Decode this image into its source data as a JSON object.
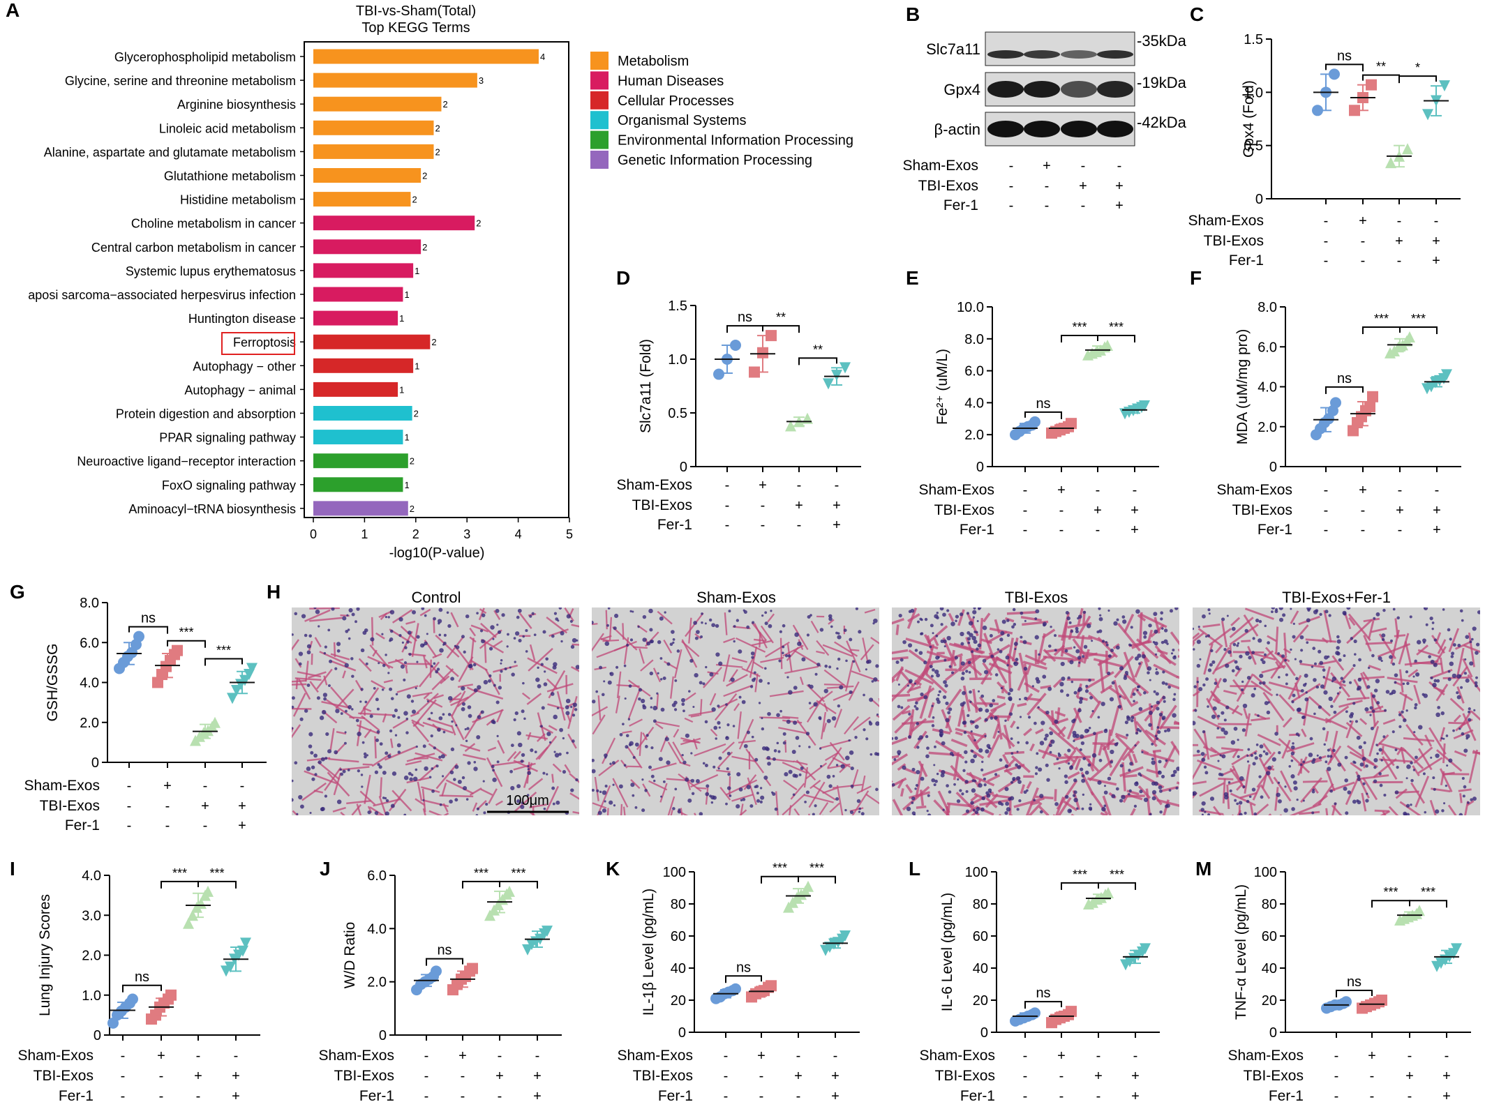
{
  "colors": {
    "Metabolism": "#f7931e",
    "Human Diseases": "#d81b60",
    "Cellular Processes": "#d62728",
    "Organismal Systems": "#1fc0cf",
    "Environmental Information Processing": "#2ca02c",
    "Genetic Information Processing": "#9467bd",
    "groups": [
      "#6a9bd8",
      "#e07b80",
      "#b8e0b0",
      "#5cc0c0"
    ],
    "he_tissue": "#c04878",
    "he_background": "#d2d2d2"
  },
  "panel_letters": [
    "A",
    "B",
    "C",
    "D",
    "E",
    "F",
    "G",
    "H",
    "I",
    "J",
    "K",
    "L",
    "M"
  ],
  "treatment_rows": [
    {
      "label": "Sham-Exos",
      "signs": [
        "-",
        "+",
        "-",
        "-"
      ]
    },
    {
      "label": "TBI-Exos",
      "signs": [
        "-",
        "-",
        "+",
        "+"
      ]
    },
    {
      "label": "Fer-1",
      "signs": [
        "-",
        "-",
        "-",
        "+"
      ]
    }
  ],
  "chart_data": [
    {
      "panel": "A",
      "type": "bar",
      "title": "TBI-vs-Sham(Total)",
      "subtitle": "Top KEGG Terms",
      "xlabel": "-log10(P-value)",
      "xlim": [
        0,
        5
      ],
      "xticks": [
        "0",
        "1",
        "2",
        "3",
        "4",
        "5"
      ],
      "highlighted": "Ferroptosis",
      "legend_position": "right",
      "legend": [
        "Metabolism",
        "Human Diseases",
        "Cellular Processes",
        "Organismal Systems",
        "Environmental Information Processing",
        "Genetic Information Processing"
      ],
      "categories": [
        "Glycerophospholipid metabolism",
        "Glycine, serine and threonine metabolism",
        "Arginine biosynthesis",
        "Linoleic acid metabolism",
        "Alanine, aspartate and glutamate metabolism",
        "Glutathione metabolism",
        "Histidine metabolism",
        "Choline metabolism in cancer",
        "Central carbon metabolism in cancer",
        "Systemic lupus erythematosus",
        "aposi sarcoma−associated herpesvirus infection",
        "Huntington disease",
        "Ferroptosis",
        "Autophagy − other",
        "Autophagy − animal",
        "Protein digestion and absorption",
        "PPAR signaling pathway",
        "Neuroactive ligand−receptor interaction",
        "FoxO signaling pathway",
        "Aminoacyl−tRNA biosynthesis"
      ],
      "values": [
        4.4,
        3.2,
        2.5,
        2.35,
        2.35,
        2.1,
        1.9,
        3.15,
        2.1,
        1.95,
        1.75,
        1.65,
        2.28,
        1.95,
        1.65,
        1.93,
        1.75,
        1.85,
        1.75,
        1.85
      ],
      "counts": [
        "4",
        "3",
        "2",
        "2",
        "2",
        "2",
        "2",
        "2",
        "2",
        "1",
        "1",
        "1",
        "2",
        "1",
        "1",
        "2",
        "1",
        "2",
        "1",
        "2"
      ],
      "groups": [
        "Metabolism",
        "Metabolism",
        "Metabolism",
        "Metabolism",
        "Metabolism",
        "Metabolism",
        "Metabolism",
        "Human Diseases",
        "Human Diseases",
        "Human Diseases",
        "Human Diseases",
        "Human Diseases",
        "Cellular Processes",
        "Cellular Processes",
        "Cellular Processes",
        "Organismal Systems",
        "Organismal Systems",
        "Environmental Information Processing",
        "Environmental Information Processing",
        "Genetic Information Processing"
      ]
    },
    {
      "panel": "C",
      "type": "scatter",
      "ylabel": "Gpx4 (Fold)",
      "ylim": [
        0,
        1.5
      ],
      "yticks": [
        0,
        0.5,
        1.0,
        1.5
      ],
      "ytick_labels": [
        "0",
        "0.5",
        "1.0",
        "1.5"
      ],
      "series": [
        {
          "values": [
            0.83,
            1.0,
            1.17
          ],
          "mean": 1.0,
          "sd": 0.17
        },
        {
          "values": [
            0.83,
            0.95,
            1.07
          ],
          "mean": 0.95,
          "sd": 0.12
        },
        {
          "values": [
            0.34,
            0.4,
            0.47
          ],
          "mean": 0.4,
          "sd": 0.1
        },
        {
          "values": [
            0.79,
            0.92,
            1.06
          ],
          "mean": 0.92,
          "sd": 0.14
        }
      ],
      "comparisons": [
        {
          "from": 0,
          "to": 1,
          "label": "ns"
        },
        {
          "from": 1,
          "to": 2,
          "label": "**"
        },
        {
          "from": 2,
          "to": 3,
          "label": "*"
        }
      ]
    },
    {
      "panel": "D",
      "type": "scatter",
      "ylabel": "Slc7a11 (Fold)",
      "ylim": [
        0,
        1.5
      ],
      "yticks": [
        0,
        0.5,
        1.0,
        1.5
      ],
      "ytick_labels": [
        "0",
        "0.5",
        "1.0",
        "1.5"
      ],
      "series": [
        {
          "values": [
            0.86,
            1.0,
            1.13
          ],
          "mean": 1.0,
          "sd": 0.13
        },
        {
          "values": [
            0.88,
            1.06,
            1.22
          ],
          "mean": 1.05,
          "sd": 0.17
        },
        {
          "values": [
            0.38,
            0.42,
            0.45
          ],
          "mean": 0.42,
          "sd": 0.04
        },
        {
          "values": [
            0.77,
            0.85,
            0.92
          ],
          "mean": 0.84,
          "sd": 0.08
        }
      ],
      "comparisons": [
        {
          "from": 0,
          "to": 1,
          "label": "ns"
        },
        {
          "from": 1,
          "to": 2,
          "label": "**"
        },
        {
          "from": 2,
          "to": 3,
          "label": "**"
        }
      ]
    },
    {
      "panel": "E",
      "type": "scatter",
      "ylabel": "Fe²⁺ (uM/L)",
      "ylim": [
        0,
        10
      ],
      "yticks": [
        0,
        2,
        4,
        6,
        8,
        10
      ],
      "ytick_labels": [
        "0",
        "2.0",
        "4.0",
        "6.0",
        "8.0",
        "10.0"
      ],
      "series": [
        {
          "values": [
            2.0,
            2.2,
            2.4,
            2.5,
            2.6,
            2.8
          ],
          "mean": 2.4,
          "sd": 0.3
        },
        {
          "values": [
            2.1,
            2.2,
            2.3,
            2.4,
            2.5,
            2.7
          ],
          "mean": 2.4,
          "sd": 0.25
        },
        {
          "values": [
            7.0,
            7.1,
            7.2,
            7.3,
            7.5,
            7.6
          ],
          "mean": 7.3,
          "sd": 0.25
        },
        {
          "values": [
            3.3,
            3.4,
            3.5,
            3.6,
            3.7,
            3.8
          ],
          "mean": 3.55,
          "sd": 0.2
        }
      ],
      "comparisons": [
        {
          "from": 0,
          "to": 1,
          "label": "ns"
        },
        {
          "from": 1,
          "to": 2,
          "label": "***"
        },
        {
          "from": 2,
          "to": 3,
          "label": "***"
        }
      ]
    },
    {
      "panel": "F",
      "type": "scatter",
      "ylabel": "MDA (uM/mg pro)",
      "ylim": [
        0,
        8
      ],
      "yticks": [
        0,
        2,
        4,
        6,
        8
      ],
      "ytick_labels": [
        "0",
        "2.0",
        "4.0",
        "6.0",
        "8.0"
      ],
      "series": [
        {
          "values": [
            1.6,
            1.9,
            2.2,
            2.4,
            2.8,
            3.2
          ],
          "mean": 2.35,
          "sd": 0.6
        },
        {
          "values": [
            1.8,
            2.2,
            2.5,
            2.8,
            3.0,
            3.5
          ],
          "mean": 2.65,
          "sd": 0.6
        },
        {
          "values": [
            5.7,
            5.8,
            6.0,
            6.1,
            6.3,
            6.5
          ],
          "mean": 6.1,
          "sd": 0.3
        },
        {
          "values": [
            3.9,
            4.0,
            4.2,
            4.3,
            4.4,
            4.6
          ],
          "mean": 4.25,
          "sd": 0.25
        }
      ],
      "comparisons": [
        {
          "from": 0,
          "to": 1,
          "label": "ns"
        },
        {
          "from": 1,
          "to": 2,
          "label": "***"
        },
        {
          "from": 2,
          "to": 3,
          "label": "***"
        }
      ]
    },
    {
      "panel": "G",
      "type": "scatter",
      "ylabel": "GSH/GSSG",
      "ylim": [
        0,
        8
      ],
      "yticks": [
        0,
        2,
        4,
        6,
        8
      ],
      "ytick_labels": [
        "0",
        "2.0",
        "4.0",
        "6.0",
        "8.0"
      ],
      "series": [
        {
          "values": [
            4.7,
            5.0,
            5.3,
            5.5,
            5.9,
            6.3
          ],
          "mean": 5.45,
          "sd": 0.55
        },
        {
          "values": [
            4.0,
            4.4,
            4.8,
            5.1,
            5.4,
            5.6
          ],
          "mean": 4.85,
          "sd": 0.6
        },
        {
          "values": [
            1.1,
            1.3,
            1.5,
            1.6,
            1.8,
            2.0
          ],
          "mean": 1.55,
          "sd": 0.35
        },
        {
          "values": [
            3.2,
            3.6,
            3.9,
            4.1,
            4.4,
            4.7
          ],
          "mean": 4.0,
          "sd": 0.55
        }
      ],
      "comparisons": [
        {
          "from": 0,
          "to": 1,
          "label": "ns"
        },
        {
          "from": 1,
          "to": 2,
          "label": "***"
        },
        {
          "from": 2,
          "to": 3,
          "label": "***"
        }
      ]
    },
    {
      "panel": "I",
      "type": "scatter",
      "ylabel": "Lung Injury Scores",
      "ylim": [
        0,
        4
      ],
      "yticks": [
        0,
        1,
        2,
        3,
        4
      ],
      "ytick_labels": [
        "0",
        "1.0",
        "2.0",
        "3.0",
        "4.0"
      ],
      "series": [
        {
          "values": [
            0.3,
            0.5,
            0.6,
            0.7,
            0.8,
            0.9
          ],
          "mean": 0.62,
          "sd": 0.2
        },
        {
          "values": [
            0.4,
            0.5,
            0.7,
            0.8,
            0.9,
            1.0
          ],
          "mean": 0.7,
          "sd": 0.22
        },
        {
          "values": [
            2.8,
            3.0,
            3.2,
            3.3,
            3.5,
            3.6
          ],
          "mean": 3.25,
          "sd": 0.3
        },
        {
          "values": [
            1.6,
            1.7,
            1.9,
            2.0,
            2.1,
            2.3
          ],
          "mean": 1.9,
          "sd": 0.3
        }
      ],
      "comparisons": [
        {
          "from": 0,
          "to": 1,
          "label": "ns"
        },
        {
          "from": 1,
          "to": 2,
          "label": "***"
        },
        {
          "from": 2,
          "to": 3,
          "label": "***"
        }
      ]
    },
    {
      "panel": "J",
      "type": "scatter",
      "ylabel": "W/D Ratio",
      "ylim": [
        0,
        6
      ],
      "yticks": [
        0,
        2,
        4,
        6
      ],
      "ytick_labels": [
        "0",
        "2.0",
        "4.0",
        "6.0"
      ],
      "series": [
        {
          "values": [
            1.7,
            1.9,
            2.0,
            2.1,
            2.2,
            2.4
          ],
          "mean": 2.05,
          "sd": 0.22
        },
        {
          "values": [
            1.7,
            1.9,
            2.1,
            2.2,
            2.4,
            2.5
          ],
          "mean": 2.1,
          "sd": 0.3
        },
        {
          "values": [
            4.5,
            4.7,
            4.9,
            5.1,
            5.3,
            5.4
          ],
          "mean": 5.0,
          "sd": 0.4
        },
        {
          "values": [
            3.2,
            3.4,
            3.5,
            3.6,
            3.8,
            3.9
          ],
          "mean": 3.6,
          "sd": 0.3
        }
      ],
      "comparisons": [
        {
          "from": 0,
          "to": 1,
          "label": "ns"
        },
        {
          "from": 1,
          "to": 2,
          "label": "***"
        },
        {
          "from": 2,
          "to": 3,
          "label": "***"
        }
      ]
    },
    {
      "panel": "K",
      "type": "scatter",
      "ylabel": "IL-1β Level (pg/mL)",
      "ylim": [
        0,
        100
      ],
      "yticks": [
        0,
        20,
        40,
        60,
        80,
        100
      ],
      "ytick_labels": [
        "0",
        "20",
        "40",
        "60",
        "80",
        "100"
      ],
      "series": [
        {
          "values": [
            21,
            22,
            24,
            25,
            26,
            27
          ],
          "mean": 24,
          "sd": 2.5
        },
        {
          "values": [
            22,
            24,
            25,
            26,
            28,
            29
          ],
          "mean": 25.5,
          "sd": 3
        },
        {
          "values": [
            78,
            81,
            84,
            86,
            88,
            91
          ],
          "mean": 85,
          "sd": 4.5
        },
        {
          "values": [
            51,
            53,
            55,
            56,
            58,
            60
          ],
          "mean": 55.5,
          "sd": 3
        }
      ],
      "comparisons": [
        {
          "from": 0,
          "to": 1,
          "label": "ns"
        },
        {
          "from": 1,
          "to": 2,
          "label": "***"
        },
        {
          "from": 2,
          "to": 3,
          "label": "***"
        }
      ]
    },
    {
      "panel": "L",
      "type": "scatter",
      "ylabel": "IL-6 Level (pg/mL)",
      "ylim": [
        0,
        100
      ],
      "yticks": [
        0,
        20,
        40,
        60,
        80,
        100
      ],
      "ytick_labels": [
        "0",
        "20",
        "40",
        "60",
        "80",
        "100"
      ],
      "series": [
        {
          "values": [
            7,
            8,
            9,
            10,
            11,
            12
          ],
          "mean": 10,
          "sd": 2
        },
        {
          "values": [
            6,
            8,
            9,
            10,
            11,
            13
          ],
          "mean": 10,
          "sd": 2.5
        },
        {
          "values": [
            80,
            81,
            83,
            84,
            86,
            87
          ],
          "mean": 83.5,
          "sd": 2.5
        },
        {
          "values": [
            42,
            44,
            46,
            48,
            50,
            52
          ],
          "mean": 47,
          "sd": 4
        }
      ],
      "comparisons": [
        {
          "from": 0,
          "to": 1,
          "label": "ns"
        },
        {
          "from": 1,
          "to": 2,
          "label": "***"
        },
        {
          "from": 2,
          "to": 3,
          "label": "***"
        }
      ]
    },
    {
      "panel": "M",
      "type": "scatter",
      "ylabel": "TNF-α Level (pg/mL)",
      "ylim": [
        0,
        100
      ],
      "yticks": [
        0,
        20,
        40,
        60,
        80,
        100
      ],
      "ytick_labels": [
        "0",
        "20",
        "40",
        "60",
        "80",
        "100"
      ],
      "series": [
        {
          "values": [
            15,
            16,
            17,
            17,
            18,
            19
          ],
          "mean": 17,
          "sd": 1.5
        },
        {
          "values": [
            15,
            16,
            17,
            18,
            19,
            20
          ],
          "mean": 17.5,
          "sd": 2
        },
        {
          "values": [
            70,
            71,
            72,
            73,
            74,
            76
          ],
          "mean": 73,
          "sd": 2
        },
        {
          "values": [
            41,
            43,
            45,
            47,
            49,
            52
          ],
          "mean": 47,
          "sd": 4
        }
      ],
      "comparisons": [
        {
          "from": 0,
          "to": 1,
          "label": "ns"
        },
        {
          "from": 1,
          "to": 2,
          "label": "***"
        },
        {
          "from": 2,
          "to": 3,
          "label": "***"
        }
      ]
    }
  ],
  "western_blot": {
    "panel": "B",
    "rows": [
      {
        "protein": "Slc7a11",
        "size": "-35kDa"
      },
      {
        "protein": "Gpx4",
        "size": "-19kDa"
      },
      {
        "protein": "β-actin",
        "size": "-42kDa"
      }
    ]
  },
  "histology": {
    "panel": "H",
    "titles": [
      "Control",
      "Sham-Exos",
      "TBI-Exos",
      "TBI-Exos+Fer-1"
    ],
    "tissue_density": [
      0.25,
      0.2,
      0.5,
      0.35
    ],
    "scale_bar": "100μm"
  }
}
